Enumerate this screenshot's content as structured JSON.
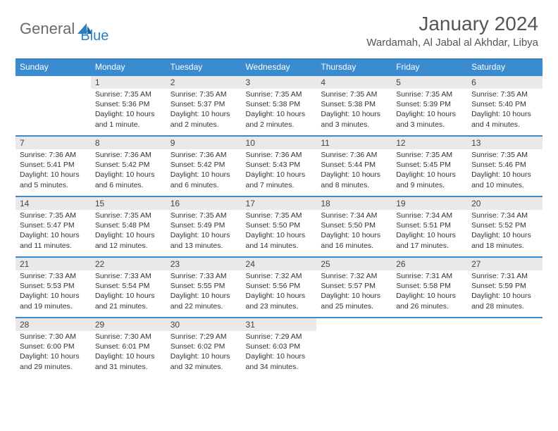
{
  "brand": {
    "part1": "General",
    "part2": "Blue"
  },
  "title": "January 2024",
  "location": "Wardamah, Al Jabal al Akhdar, Libya",
  "dow": [
    "Sunday",
    "Monday",
    "Tuesday",
    "Wednesday",
    "Thursday",
    "Friday",
    "Saturday"
  ],
  "colors": {
    "header_bg": "#3a8bd0",
    "header_text": "#ffffff",
    "daynum_bg": "#e9e9e9",
    "border": "#3a8bd0",
    "brand_gray": "#6a6a6a",
    "brand_blue": "#2b7fc3"
  },
  "weeks": [
    [
      null,
      {
        "n": "1",
        "sr": "7:35 AM",
        "ss": "5:36 PM",
        "dl": "10 hours and 1 minute."
      },
      {
        "n": "2",
        "sr": "7:35 AM",
        "ss": "5:37 PM",
        "dl": "10 hours and 2 minutes."
      },
      {
        "n": "3",
        "sr": "7:35 AM",
        "ss": "5:38 PM",
        "dl": "10 hours and 2 minutes."
      },
      {
        "n": "4",
        "sr": "7:35 AM",
        "ss": "5:38 PM",
        "dl": "10 hours and 3 minutes."
      },
      {
        "n": "5",
        "sr": "7:35 AM",
        "ss": "5:39 PM",
        "dl": "10 hours and 3 minutes."
      },
      {
        "n": "6",
        "sr": "7:35 AM",
        "ss": "5:40 PM",
        "dl": "10 hours and 4 minutes."
      }
    ],
    [
      {
        "n": "7",
        "sr": "7:36 AM",
        "ss": "5:41 PM",
        "dl": "10 hours and 5 minutes."
      },
      {
        "n": "8",
        "sr": "7:36 AM",
        "ss": "5:42 PM",
        "dl": "10 hours and 6 minutes."
      },
      {
        "n": "9",
        "sr": "7:36 AM",
        "ss": "5:42 PM",
        "dl": "10 hours and 6 minutes."
      },
      {
        "n": "10",
        "sr": "7:36 AM",
        "ss": "5:43 PM",
        "dl": "10 hours and 7 minutes."
      },
      {
        "n": "11",
        "sr": "7:36 AM",
        "ss": "5:44 PM",
        "dl": "10 hours and 8 minutes."
      },
      {
        "n": "12",
        "sr": "7:35 AM",
        "ss": "5:45 PM",
        "dl": "10 hours and 9 minutes."
      },
      {
        "n": "13",
        "sr": "7:35 AM",
        "ss": "5:46 PM",
        "dl": "10 hours and 10 minutes."
      }
    ],
    [
      {
        "n": "14",
        "sr": "7:35 AM",
        "ss": "5:47 PM",
        "dl": "10 hours and 11 minutes."
      },
      {
        "n": "15",
        "sr": "7:35 AM",
        "ss": "5:48 PM",
        "dl": "10 hours and 12 minutes."
      },
      {
        "n": "16",
        "sr": "7:35 AM",
        "ss": "5:49 PM",
        "dl": "10 hours and 13 minutes."
      },
      {
        "n": "17",
        "sr": "7:35 AM",
        "ss": "5:50 PM",
        "dl": "10 hours and 14 minutes."
      },
      {
        "n": "18",
        "sr": "7:34 AM",
        "ss": "5:50 PM",
        "dl": "10 hours and 16 minutes."
      },
      {
        "n": "19",
        "sr": "7:34 AM",
        "ss": "5:51 PM",
        "dl": "10 hours and 17 minutes."
      },
      {
        "n": "20",
        "sr": "7:34 AM",
        "ss": "5:52 PM",
        "dl": "10 hours and 18 minutes."
      }
    ],
    [
      {
        "n": "21",
        "sr": "7:33 AM",
        "ss": "5:53 PM",
        "dl": "10 hours and 19 minutes."
      },
      {
        "n": "22",
        "sr": "7:33 AM",
        "ss": "5:54 PM",
        "dl": "10 hours and 21 minutes."
      },
      {
        "n": "23",
        "sr": "7:33 AM",
        "ss": "5:55 PM",
        "dl": "10 hours and 22 minutes."
      },
      {
        "n": "24",
        "sr": "7:32 AM",
        "ss": "5:56 PM",
        "dl": "10 hours and 23 minutes."
      },
      {
        "n": "25",
        "sr": "7:32 AM",
        "ss": "5:57 PM",
        "dl": "10 hours and 25 minutes."
      },
      {
        "n": "26",
        "sr": "7:31 AM",
        "ss": "5:58 PM",
        "dl": "10 hours and 26 minutes."
      },
      {
        "n": "27",
        "sr": "7:31 AM",
        "ss": "5:59 PM",
        "dl": "10 hours and 28 minutes."
      }
    ],
    [
      {
        "n": "28",
        "sr": "7:30 AM",
        "ss": "6:00 PM",
        "dl": "10 hours and 29 minutes."
      },
      {
        "n": "29",
        "sr": "7:30 AM",
        "ss": "6:01 PM",
        "dl": "10 hours and 31 minutes."
      },
      {
        "n": "30",
        "sr": "7:29 AM",
        "ss": "6:02 PM",
        "dl": "10 hours and 32 minutes."
      },
      {
        "n": "31",
        "sr": "7:29 AM",
        "ss": "6:03 PM",
        "dl": "10 hours and 34 minutes."
      },
      null,
      null,
      null
    ]
  ],
  "labels": {
    "sunrise": "Sunrise:",
    "sunset": "Sunset:",
    "daylight": "Daylight:"
  }
}
